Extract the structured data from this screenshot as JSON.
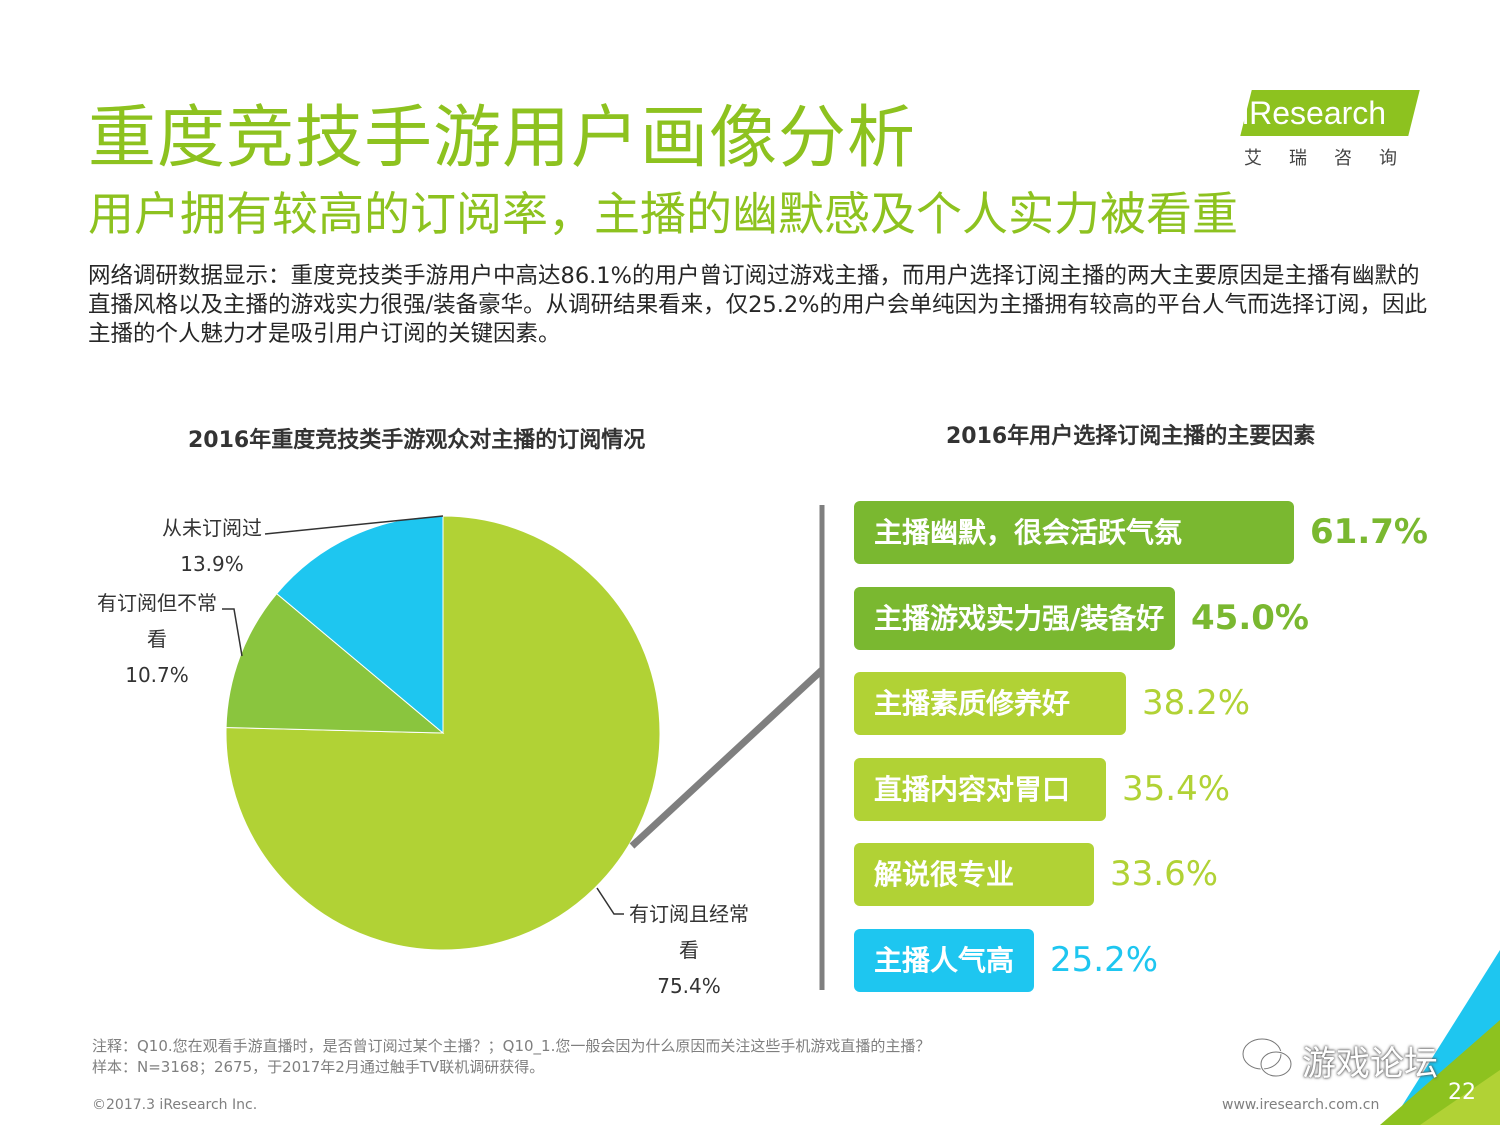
{
  "header": {
    "title": "重度竞技手游用户画像分析",
    "subtitle": "用户拥有较高的订阅率，主播的幽默感及个人实力被看重",
    "body": "网络调研数据显示：重度竞技类手游用户中高达86.1%的用户曾订阅过游戏主播，而用户选择订阅主播的两大主要原因是主播有幽默的直播风格以及主播的游戏实力很强/装备豪华。从调研结果看来，仅25.2%的用户会单纯因为主播拥有较高的平台人气而选择订阅，因此主播的个人魅力才是吸引用户订阅的关键因素。"
  },
  "logo": {
    "text": "iResearch",
    "sub": "艾瑞咨询"
  },
  "colors": {
    "green": "#8DC21F",
    "dark_green": "#7AB830",
    "lime": "#B1D235",
    "cyan": "#1EC6F0",
    "mid_green": "#8AC53E"
  },
  "chart_data": [
    {
      "type": "pie",
      "title": "2016年重度竞技类手游观众对主播的订阅情况",
      "slices": [
        {
          "label_line1": "有订阅且经常",
          "label_line2": "看",
          "value": 75.4,
          "value_text": "75.4%",
          "color": "#B1D235"
        },
        {
          "label_line1": "有订阅但不常",
          "label_line2": "看",
          "value": 10.7,
          "value_text": "10.7%",
          "color": "#8AC53E"
        },
        {
          "label_line1": "从未订阅过",
          "label_line2": "",
          "value": 13.9,
          "value_text": "13.9%",
          "color": "#1EC6F0"
        }
      ]
    },
    {
      "type": "bar",
      "orientation": "horizontal",
      "title": "2016年用户选择订阅主播的主要因素",
      "categories": [
        "主播幽默，很会活跃气氛",
        "主播游戏实力强/装备好",
        "主播素质修养好",
        "直播内容对胃口",
        "解说很专业",
        "主播人气高"
      ],
      "values": [
        61.7,
        45.0,
        38.2,
        35.4,
        33.6,
        25.2
      ],
      "value_texts": [
        "61.7%",
        "45.0%",
        "38.2%",
        "35.4%",
        "33.6%",
        "25.2%"
      ],
      "colors": [
        "#7AB830",
        "#7AB830",
        "#B1D235",
        "#B1D235",
        "#B1D235",
        "#1EC6F0"
      ]
    }
  ],
  "footer": {
    "note_line1": "注释：Q10.您在观看手游直播时，是否曾订阅过某个主播？；Q10_1.您一般会因为什么原因而关注这些手机游戏直播的主播？",
    "note_line2": "样本：N=3168；2675，于2017年2月通过触手TV联机调研获得。",
    "copyright": "©2017.3 iResearch Inc.",
    "website": "www.iresearch.com.cn",
    "page": "22",
    "watermark": "游戏论坛"
  }
}
